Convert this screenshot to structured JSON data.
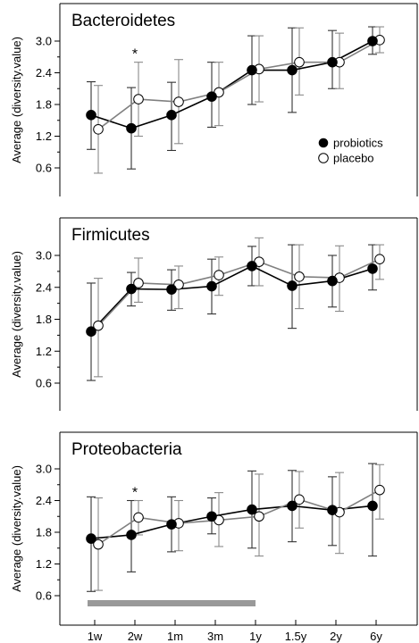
{
  "chart_data": [
    {
      "type": "line",
      "title": "Bacteroidetes",
      "ylabel": "Average (diversity.value)",
      "ylim": [
        0.4,
        3.6
      ],
      "yticks": [
        "0.6",
        "1.2",
        "1.8",
        "2.4",
        "3.0"
      ],
      "categories": [
        "1w",
        "2w",
        "1m",
        "3m",
        "1y",
        "1.5y",
        "2y",
        "6y"
      ],
      "annotations": [
        {
          "category": "2w",
          "text": "*"
        }
      ],
      "legend": {
        "placement": "bottom-right"
      },
      "series": [
        {
          "name": "probiotics",
          "color": "#000000",
          "values": [
            1.6,
            1.35,
            1.6,
            1.95,
            2.45,
            2.45,
            2.6,
            3.0
          ],
          "err_low": [
            0.95,
            0.58,
            0.93,
            1.37,
            1.8,
            1.65,
            2.1,
            2.75
          ],
          "err_high": [
            2.23,
            2.12,
            2.22,
            2.6,
            3.1,
            3.25,
            3.2,
            3.27
          ]
        },
        {
          "name": "placebo",
          "color": "#888888",
          "values": [
            1.33,
            1.9,
            1.85,
            2.03,
            2.47,
            2.6,
            2.6,
            3.02
          ],
          "err_low": [
            0.5,
            1.2,
            1.06,
            1.4,
            1.85,
            1.98,
            2.1,
            2.78
          ],
          "err_high": [
            2.16,
            2.6,
            2.65,
            2.6,
            3.1,
            3.25,
            3.15,
            3.27
          ]
        }
      ]
    },
    {
      "type": "line",
      "title": "Firmicutes",
      "ylabel": "Average (diversity.value)",
      "ylim": [
        0.4,
        3.6
      ],
      "yticks": [
        "0.6",
        "1.2",
        "1.8",
        "2.4",
        "3.0"
      ],
      "categories": [
        "1w",
        "2w",
        "1m",
        "3m",
        "1y",
        "1.5y",
        "2y",
        "6y"
      ],
      "annotations": [],
      "series": [
        {
          "name": "probiotics",
          "color": "#000000",
          "values": [
            1.57,
            2.37,
            2.36,
            2.42,
            2.8,
            2.43,
            2.52,
            2.75
          ],
          "err_low": [
            0.65,
            2.05,
            1.97,
            1.9,
            2.43,
            1.63,
            2.03,
            2.35
          ],
          "err_high": [
            2.48,
            2.68,
            2.73,
            2.93,
            3.17,
            3.2,
            3.0,
            3.2
          ]
        },
        {
          "name": "placebo",
          "color": "#888888",
          "values": [
            1.68,
            2.48,
            2.45,
            2.63,
            2.88,
            2.6,
            2.58,
            2.93
          ],
          "err_low": [
            0.72,
            2.12,
            2.0,
            2.25,
            2.43,
            2.0,
            1.95,
            2.55
          ],
          "err_high": [
            2.57,
            2.95,
            2.8,
            2.97,
            3.33,
            3.2,
            3.18,
            3.2
          ]
        }
      ]
    },
    {
      "type": "line",
      "title": "Proteobacteria",
      "ylabel": "Average (diversity.value)",
      "ylim": [
        0.4,
        3.6
      ],
      "yticks": [
        "0.6",
        "1.2",
        "1.8",
        "2.4",
        "3.0"
      ],
      "categories": [
        "1w",
        "2w",
        "1m",
        "3m",
        "1y",
        "1.5y",
        "2y",
        "6y"
      ],
      "annotations": [
        {
          "category": "2w",
          "text": "*"
        }
      ],
      "series": [
        {
          "name": "probiotics",
          "color": "#000000",
          "values": [
            1.68,
            1.75,
            1.95,
            2.1,
            2.23,
            2.3,
            2.22,
            2.3
          ],
          "err_low": [
            0.68,
            1.05,
            1.43,
            1.77,
            1.5,
            1.62,
            1.55,
            1.35
          ],
          "err_high": [
            2.47,
            2.4,
            2.47,
            2.45,
            2.96,
            2.97,
            2.85,
            3.1
          ]
        },
        {
          "name": "placebo",
          "color": "#888888",
          "values": [
            1.57,
            2.08,
            1.97,
            2.03,
            2.1,
            2.42,
            2.18,
            2.6
          ],
          "err_low": [
            0.7,
            1.75,
            1.45,
            1.53,
            1.35,
            1.88,
            1.4,
            2.05
          ],
          "err_high": [
            2.45,
            2.4,
            2.4,
            2.55,
            2.9,
            2.95,
            2.93,
            3.08
          ]
        }
      ]
    }
  ],
  "treatment_bar": {
    "from": "1w",
    "to": "1y",
    "color": "#999999"
  }
}
